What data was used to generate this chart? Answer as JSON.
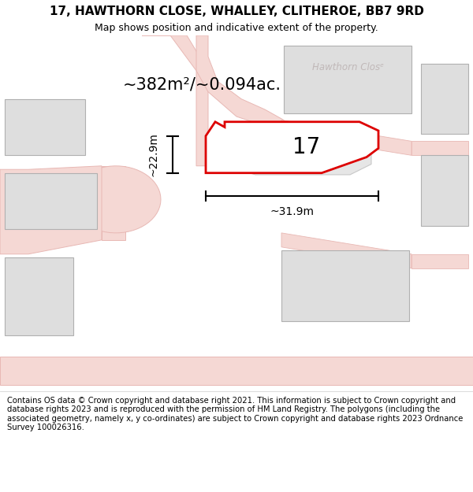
{
  "title_line1": "17, HAWTHORN CLOSE, WHALLEY, CLITHEROE, BB7 9RD",
  "title_line2": "Map shows position and indicative extent of the property.",
  "street_label": "Hawthorn Closᵉ",
  "plot_number": "17",
  "area_label": "~382m²/~0.094ac.",
  "dim_height": "~22.9m",
  "dim_width": "~31.9m",
  "footer": "Contains OS data © Crown copyright and database right 2021. This information is subject to Crown copyright and database rights 2023 and is reproduced with the permission of HM Land Registry. The polygons (including the associated geometry, namely x, y co-ordinates) are subject to Crown copyright and database rights 2023 Ordnance Survey 100026316.",
  "bg_color": "#f2eeec",
  "plot_fill": "#ffffff",
  "plot_outline": "#dd0000",
  "building_fill": "#dedede",
  "building_outline": "#b0b0b0",
  "road_fill": "#f5d8d4",
  "road_outline": "#e8b8b4",
  "dim_color": "#000000",
  "street_label_color": "#c0b8b8",
  "plot_number_fontsize": 20,
  "area_label_fontsize": 15,
  "dim_fontsize": 10,
  "title_fontsize1": 11,
  "title_fontsize2": 9,
  "footer_fontsize": 7.2,
  "white_bg": "#ffffff"
}
